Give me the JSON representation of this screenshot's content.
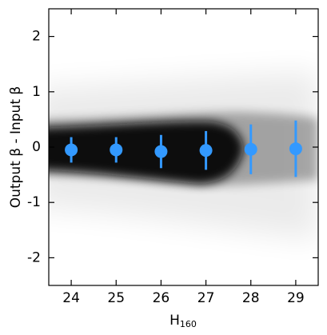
{
  "chart_data": {
    "type": "scatter",
    "xlabel": {
      "main": "H",
      "subscript": "160"
    },
    "ylabel": "Output β - Input β",
    "x": [
      24,
      25,
      26,
      27,
      28,
      29
    ],
    "series": [
      {
        "color": "#3399ff",
        "values": [
          -0.05,
          -0.05,
          -0.08,
          -0.06,
          -0.04,
          -0.03
        ],
        "errors": [
          0.23,
          0.23,
          0.3,
          0.35,
          0.45,
          0.51
        ]
      }
    ],
    "xlim": [
      23.5,
      29.5
    ],
    "ylim": [
      -2.5,
      2.5
    ],
    "xticks": [
      24,
      25,
      26,
      27,
      28,
      29
    ],
    "yticks": [
      -2,
      -1,
      0,
      1,
      2
    ]
  }
}
